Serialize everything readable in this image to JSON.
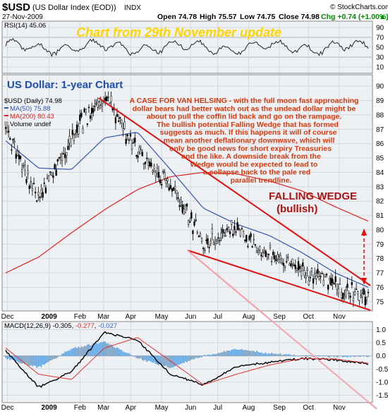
{
  "header": {
    "symbol": "$USD",
    "name": "(US Dollar Index (EOD))",
    "exchange": "INDX",
    "date": "27-Nov-2009",
    "open": "Open 74.78",
    "high": "High 75.57",
    "low": "Low 74.75",
    "close": "Close 74.98",
    "chg": "Chg +0.74 (+1.00%)",
    "chg_arrow": "▲",
    "source": "© StockCharts.com"
  },
  "rsi_panel": {
    "label": "RSI(14) 45.06",
    "update_text": "Chart from 29th November update",
    "y_ticks": [
      "90",
      "70",
      "50",
      "30",
      "10"
    ]
  },
  "price_panel": {
    "chart_title": "US Dollar: 1-year Chart",
    "legend": [
      {
        "text": "$USD (Daily) 74.98",
        "color": "#000000"
      },
      {
        "text": "MA(50) 75.88",
        "color": "#3355aa"
      },
      {
        "text": "MA(200) 80.43",
        "color": "#dd2222"
      },
      {
        "text": "Volume undef",
        "color": "#000000"
      }
    ],
    "annotation_lines": [
      "A CASE FOR VAN HELSING - with the full moon fast approaching",
      "dollar bears had better watch out as the undead dollar might be",
      "about to pull the coffin lid back and go on the rampage.",
      "The bullish potential Falling Wedge that has formed",
      "suggests as much. If this happens it will of course",
      "mean another deflationary downwave, which will",
      "only be good news for short expiry Treasuries",
      "and the like. A downside break from the",
      "Wedge would be expected to lead to",
      "a collapse back to the pale red",
      "parallel trendline."
    ],
    "wedge_title": "FALLING WEDGE",
    "wedge_sub": "(bullish)",
    "y_ticks": [
      "90",
      "89",
      "88",
      "87",
      "86",
      "85",
      "84",
      "83",
      "82",
      "81",
      "80",
      "79",
      "78",
      "77",
      "76",
      "75"
    ],
    "x_ticks": [
      "Dec",
      "2009",
      "Feb",
      "Mar",
      "Apr",
      "May",
      "Jun",
      "Jul",
      "Aug",
      "Sep",
      "Oct",
      "Nov"
    ]
  },
  "macd_panel": {
    "label": "MACD(12,26,9) -0.305, -0.277, -0.027",
    "label_parts": [
      "MACD(12,26,9) -0.305, ",
      "-0.277",
      ", ",
      "-0.027"
    ],
    "y_ticks": [
      "1.0",
      "0.5",
      "0.0",
      "-0.5",
      "-1.0",
      "-1.5"
    ],
    "x_ticks": [
      "Dec",
      "2009",
      "Feb",
      "Mar",
      "Apr",
      "May",
      "Jun",
      "Jul",
      "Aug",
      "Sep",
      "Oct",
      "Nov"
    ]
  },
  "colors": {
    "panel_bg": "#eef1f4",
    "grid": "#d4d8dc",
    "ma50": "#3355aa",
    "ma200": "#dd2222",
    "wedge": "#e01010",
    "parallel": "#f4a0a8",
    "macd_hist": "#5b9bd5"
  },
  "chart_data": {
    "type": "line",
    "title": "US Dollar: 1-year Chart",
    "x": [
      "Dec",
      "2009",
      "Feb",
      "Mar",
      "Apr",
      "May",
      "Jun",
      "Jul",
      "Aug",
      "Sep",
      "Oct",
      "Nov"
    ],
    "series": [
      {
        "name": "$USD (Daily) 74.98",
        "values": [
          86.8,
          82.0,
          86.5,
          89.4,
          85.4,
          83.1,
          79.2,
          80.0,
          78.5,
          77.2,
          76.1,
          75.1
        ]
      },
      {
        "name": "MA(50) 75.88",
        "values": [
          86.2,
          84.3,
          84.2,
          86.4,
          86.8,
          84.2,
          81.5,
          80.4,
          79.6,
          78.4,
          77.0,
          76.0
        ]
      },
      {
        "name": "MA(200) 80.43",
        "values": [
          77.0,
          78.1,
          79.8,
          81.4,
          82.8,
          83.7,
          84.0,
          83.9,
          83.4,
          82.7,
          81.6,
          80.6
        ]
      }
    ],
    "ylim": [
      74.5,
      90.5
    ],
    "rsi_value": 45.06,
    "macd": {
      "macd": -0.305,
      "signal": -0.277,
      "histogram": -0.027,
      "ylim": [
        -1.7,
        1.2
      ]
    }
  }
}
